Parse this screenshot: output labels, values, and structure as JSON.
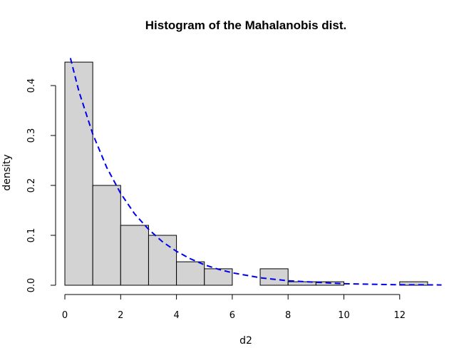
{
  "chart_data": {
    "type": "bar",
    "title": "Histogram of the Mahalanobis dist.",
    "xlabel": "d2",
    "ylabel": "density",
    "xlim": [
      0,
      13.5
    ],
    "ylim": [
      0,
      0.45
    ],
    "x_ticks": [
      0,
      2,
      4,
      6,
      8,
      10,
      12
    ],
    "y_ticks": [
      0.0,
      0.1,
      0.2,
      0.3,
      0.4
    ],
    "bins": [
      {
        "from": 0,
        "to": 1,
        "density": 0.447
      },
      {
        "from": 1,
        "to": 2,
        "density": 0.2
      },
      {
        "from": 2,
        "to": 3,
        "density": 0.12
      },
      {
        "from": 3,
        "to": 4,
        "density": 0.1
      },
      {
        "from": 4,
        "to": 5,
        "density": 0.047
      },
      {
        "from": 5,
        "to": 6,
        "density": 0.033
      },
      {
        "from": 6,
        "to": 7,
        "density": 0.0
      },
      {
        "from": 7,
        "to": 8,
        "density": 0.033
      },
      {
        "from": 8,
        "to": 9,
        "density": 0.007
      },
      {
        "from": 9,
        "to": 10,
        "density": 0.007
      },
      {
        "from": 10,
        "to": 11,
        "density": 0.0
      },
      {
        "from": 11,
        "to": 12,
        "density": 0.0
      },
      {
        "from": 12,
        "to": 13,
        "density": 0.007
      }
    ],
    "curve": {
      "x": [
        0.2,
        0.5,
        1,
        1.5,
        2,
        2.5,
        3,
        3.5,
        4,
        4.5,
        5,
        5.5,
        6,
        7,
        8,
        9,
        10,
        11,
        12,
        13,
        13.5
      ],
      "y": [
        0.455,
        0.389,
        0.303,
        0.236,
        0.184,
        0.143,
        0.112,
        0.087,
        0.068,
        0.053,
        0.041,
        0.032,
        0.025,
        0.015,
        0.009,
        0.006,
        0.003,
        0.002,
        0.001,
        0.0008,
        0.0006
      ],
      "style": "dashed"
    },
    "bar_color": "#d3d3d3",
    "curve_color": "#0000ee",
    "grid": false
  }
}
